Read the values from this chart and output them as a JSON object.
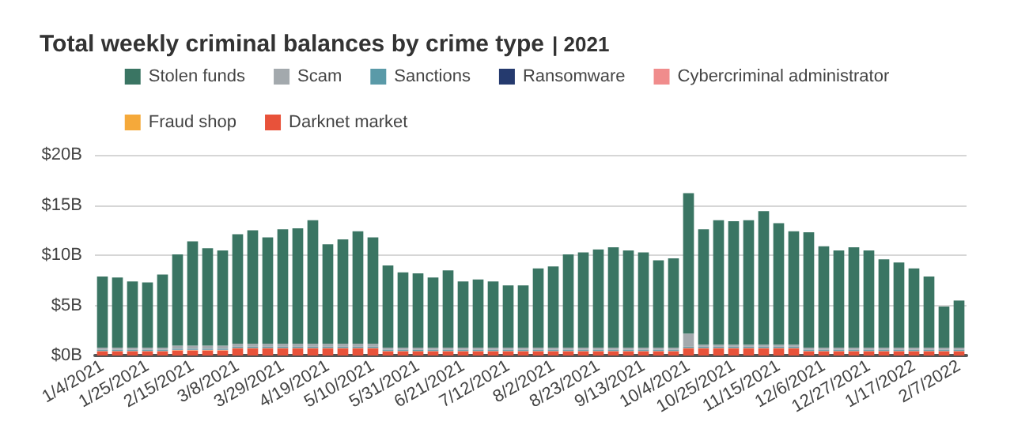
{
  "chart_data": {
    "type": "bar",
    "title": "Total weekly criminal balances by crime type",
    "subtitle": "| 2021",
    "stacked": true,
    "legend": "top",
    "grid": "y",
    "categories": [
      "1/4/2021",
      null,
      null,
      "1/25/2021",
      null,
      null,
      "2/15/2021",
      null,
      null,
      "3/8/2021",
      null,
      null,
      "3/29/2021",
      null,
      null,
      "4/19/2021",
      null,
      null,
      "5/10/2021",
      null,
      null,
      "5/31/2021",
      null,
      null,
      "6/21/2021",
      null,
      null,
      "7/12/2021",
      null,
      null,
      "8/2/2021",
      null,
      null,
      "8/23/2021",
      null,
      null,
      "9/13/2021",
      null,
      null,
      "10/4/2021",
      null,
      null,
      "10/25/2021",
      null,
      null,
      "11/15/2021",
      null,
      null,
      "12/6/2021",
      null,
      null,
      "12/27/2021",
      null,
      null,
      "1/17/2022",
      null,
      null,
      "2/7/2022"
    ],
    "ylim": [
      0,
      20
    ],
    "yticks": [
      {
        "value": 0,
        "label": "$0B"
      },
      {
        "value": 5,
        "label": "$5B"
      },
      {
        "value": 10,
        "label": "$10B"
      },
      {
        "value": 15,
        "label": "$15B"
      },
      {
        "value": 20,
        "label": "$20B"
      }
    ],
    "series": [
      {
        "name": "Darknet market",
        "color": "#e8523a",
        "values": [
          0.4,
          0.4,
          0.4,
          0.4,
          0.4,
          0.5,
          0.5,
          0.5,
          0.5,
          0.7,
          0.7,
          0.7,
          0.7,
          0.7,
          0.7,
          0.7,
          0.7,
          0.7,
          0.7,
          0.4,
          0.4,
          0.4,
          0.4,
          0.4,
          0.4,
          0.4,
          0.4,
          0.4,
          0.4,
          0.4,
          0.4,
          0.4,
          0.4,
          0.4,
          0.4,
          0.4,
          0.4,
          0.4,
          0.4,
          0.7,
          0.7,
          0.7,
          0.7,
          0.7,
          0.7,
          0.7,
          0.7,
          0.4,
          0.4,
          0.4,
          0.4,
          0.4,
          0.4,
          0.4,
          0.4,
          0.4,
          0.4,
          0.4
        ]
      },
      {
        "name": "Fraud shop",
        "color": "#f5a93a",
        "values": [
          0.03,
          0.03,
          0.03,
          0.03,
          0.03,
          0.03,
          0.03,
          0.03,
          0.03,
          0.03,
          0.03,
          0.03,
          0.03,
          0.03,
          0.03,
          0.03,
          0.03,
          0.03,
          0.03,
          0.03,
          0.03,
          0.03,
          0.03,
          0.03,
          0.03,
          0.03,
          0.03,
          0.03,
          0.03,
          0.03,
          0.03,
          0.03,
          0.03,
          0.03,
          0.03,
          0.03,
          0.03,
          0.03,
          0.03,
          0.03,
          0.03,
          0.03,
          0.03,
          0.03,
          0.03,
          0.03,
          0.03,
          0.03,
          0.03,
          0.03,
          0.03,
          0.03,
          0.03,
          0.03,
          0.03,
          0.03,
          0.03,
          0.03
        ]
      },
      {
        "name": "Cybercriminal administrator",
        "color": "#f08c8c",
        "values": [
          0.03,
          0.03,
          0.03,
          0.03,
          0.03,
          0.03,
          0.03,
          0.03,
          0.03,
          0.03,
          0.03,
          0.03,
          0.03,
          0.03,
          0.03,
          0.03,
          0.03,
          0.03,
          0.03,
          0.03,
          0.03,
          0.03,
          0.03,
          0.03,
          0.03,
          0.03,
          0.03,
          0.03,
          0.03,
          0.03,
          0.03,
          0.03,
          0.03,
          0.03,
          0.03,
          0.03,
          0.03,
          0.03,
          0.03,
          0.03,
          0.03,
          0.03,
          0.03,
          0.03,
          0.03,
          0.03,
          0.03,
          0.03,
          0.03,
          0.03,
          0.03,
          0.03,
          0.03,
          0.03,
          0.03,
          0.03,
          0.03,
          0.03
        ]
      },
      {
        "name": "Ransomware",
        "color": "#253a6e",
        "values": [
          0.02,
          0.02,
          0.02,
          0.02,
          0.02,
          0.02,
          0.02,
          0.02,
          0.02,
          0.02,
          0.02,
          0.02,
          0.02,
          0.02,
          0.02,
          0.02,
          0.02,
          0.02,
          0.02,
          0.02,
          0.02,
          0.02,
          0.02,
          0.02,
          0.02,
          0.02,
          0.02,
          0.02,
          0.02,
          0.02,
          0.02,
          0.02,
          0.02,
          0.02,
          0.02,
          0.02,
          0.02,
          0.02,
          0.02,
          0.02,
          0.02,
          0.02,
          0.02,
          0.02,
          0.02,
          0.02,
          0.02,
          0.02,
          0.02,
          0.02,
          0.02,
          0.02,
          0.02,
          0.02,
          0.02,
          0.02,
          0.02,
          0.02
        ]
      },
      {
        "name": "Sanctions",
        "color": "#5a9aa8",
        "values": [
          0.1,
          0.1,
          0.1,
          0.1,
          0.1,
          0.1,
          0.1,
          0.1,
          0.1,
          0.1,
          0.1,
          0.1,
          0.1,
          0.1,
          0.1,
          0.1,
          0.1,
          0.1,
          0.1,
          0.1,
          0.1,
          0.1,
          0.1,
          0.1,
          0.1,
          0.1,
          0.1,
          0.1,
          0.1,
          0.1,
          0.1,
          0.1,
          0.1,
          0.1,
          0.1,
          0.1,
          0.1,
          0.1,
          0.1,
          0.1,
          0.1,
          0.1,
          0.1,
          0.1,
          0.1,
          0.1,
          0.1,
          0.1,
          0.1,
          0.1,
          0.1,
          0.1,
          0.1,
          0.1,
          0.1,
          0.1,
          0.1,
          0.1
        ]
      },
      {
        "name": "Scam",
        "color": "#a3a9ad",
        "values": [
          0.2,
          0.2,
          0.2,
          0.2,
          0.2,
          0.3,
          0.3,
          0.3,
          0.3,
          0.3,
          0.3,
          0.3,
          0.3,
          0.3,
          0.3,
          0.3,
          0.3,
          0.3,
          0.3,
          0.2,
          0.2,
          0.2,
          0.2,
          0.2,
          0.2,
          0.2,
          0.2,
          0.2,
          0.2,
          0.2,
          0.2,
          0.2,
          0.2,
          0.2,
          0.2,
          0.2,
          0.2,
          0.2,
          0.2,
          1.3,
          0.2,
          0.2,
          0.2,
          0.2,
          0.2,
          0.2,
          0.2,
          0.2,
          0.2,
          0.2,
          0.2,
          0.2,
          0.2,
          0.2,
          0.2,
          0.2,
          0.2,
          0.2
        ]
      },
      {
        "name": "Stolen funds",
        "color": "#3a7563",
        "values": [
          7.1,
          7.0,
          6.6,
          6.5,
          7.3,
          9.1,
          10.4,
          9.7,
          9.5,
          10.9,
          11.3,
          10.6,
          11.4,
          11.5,
          12.3,
          9.9,
          10.4,
          11.2,
          10.6,
          8.2,
          7.5,
          7.4,
          7.0,
          7.7,
          6.6,
          6.8,
          6.6,
          6.2,
          6.2,
          7.9,
          8.1,
          9.3,
          9.5,
          9.8,
          10.0,
          9.7,
          9.5,
          8.7,
          8.9,
          14.0,
          11.5,
          12.4,
          12.3,
          12.4,
          13.3,
          12.1,
          11.3,
          11.5,
          10.1,
          9.7,
          10.0,
          9.7,
          8.8,
          8.5,
          7.9,
          7.1,
          4.1,
          4.7
        ]
      }
    ]
  }
}
